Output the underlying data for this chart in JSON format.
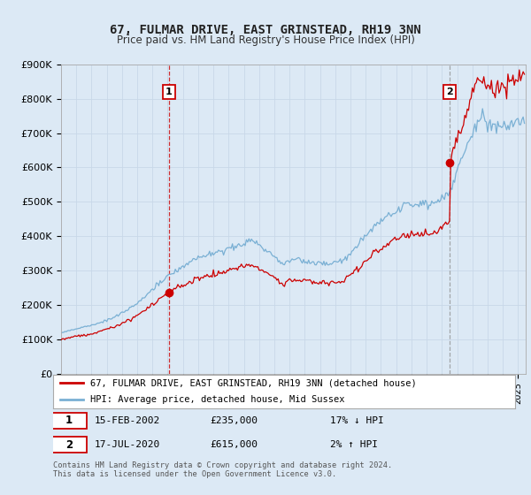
{
  "title": "67, FULMAR DRIVE, EAST GRINSTEAD, RH19 3NN",
  "subtitle": "Price paid vs. HM Land Registry's House Price Index (HPI)",
  "legend_label_red": "67, FULMAR DRIVE, EAST GRINSTEAD, RH19 3NN (detached house)",
  "legend_label_blue": "HPI: Average price, detached house, Mid Sussex",
  "footnote": "Contains HM Land Registry data © Crown copyright and database right 2024.\nThis data is licensed under the Open Government Licence v3.0.",
  "sale1_date": "15-FEB-2002",
  "sale1_price": 235000,
  "sale1_hpi": "17% ↓ HPI",
  "sale2_date": "17-JUL-2020",
  "sale2_price": 615000,
  "sale2_hpi": "2% ↑ HPI",
  "ylim_min": 0,
  "ylim_max": 900000,
  "chart_bg_color": "#dce9f5",
  "plot_bg_color": "#ffffff",
  "red_color": "#cc0000",
  "blue_color": "#7ab0d4",
  "grid_color": "#c8d8e8",
  "vline1_color": "#cc0000",
  "vline2_color": "#888888",
  "annotation_box_color": "#cc0000",
  "title_fontsize": 10,
  "subtitle_fontsize": 9
}
